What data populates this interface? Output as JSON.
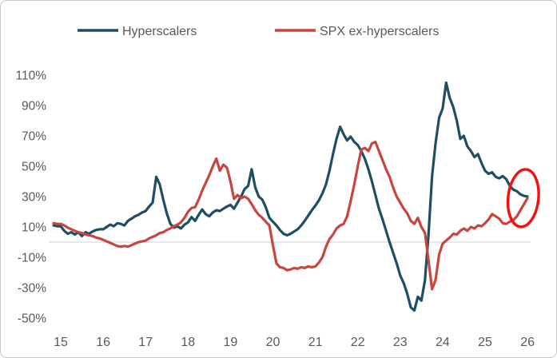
{
  "chart_data": {
    "type": "line",
    "title": "",
    "xlabel": "",
    "ylabel": "",
    "x_start": 14.8333,
    "x_step": 0.083333,
    "xlim": [
      14.75,
      26.1
    ],
    "ylim": [
      -50,
      110
    ],
    "grid": "zero-line-only",
    "legend_position": "top",
    "axis_text_color": "#595959",
    "x_ticks": [
      {
        "value": 15,
        "label": "15"
      },
      {
        "value": 16,
        "label": "16"
      },
      {
        "value": 17,
        "label": "17"
      },
      {
        "value": 18,
        "label": "18"
      },
      {
        "value": 19,
        "label": "19"
      },
      {
        "value": 20,
        "label": "20"
      },
      {
        "value": 21,
        "label": "21"
      },
      {
        "value": 22,
        "label": "22"
      },
      {
        "value": 23,
        "label": "23"
      },
      {
        "value": 24,
        "label": "24"
      },
      {
        "value": 25,
        "label": "25"
      },
      {
        "value": 26,
        "label": "26"
      }
    ],
    "y_ticks": [
      {
        "value": 110,
        "label": "110%"
      },
      {
        "value": 90,
        "label": "90%"
      },
      {
        "value": 70,
        "label": "70%"
      },
      {
        "value": 50,
        "label": "50%"
      },
      {
        "value": 30,
        "label": "30%"
      },
      {
        "value": 10,
        "label": "10%"
      },
      {
        "value": -10,
        "label": "-10%"
      },
      {
        "value": -30,
        "label": "-30%"
      },
      {
        "value": -50,
        "label": "-50%"
      }
    ],
    "series": [
      {
        "name": "Hyperscalers",
        "color": "#1f4e63",
        "values": [
          11,
          10.5,
          10.5,
          7.5,
          5.5,
          6.5,
          5,
          6.5,
          4,
          6.5,
          5.5,
          7,
          8,
          8.5,
          8.5,
          10,
          11.5,
          10.5,
          12.5,
          12,
          11,
          14,
          15.5,
          17,
          18,
          19.5,
          20.5,
          23.5,
          26,
          43,
          38,
          28,
          19,
          12,
          9.5,
          10.5,
          9,
          11.5,
          13,
          16.5,
          14,
          18,
          21.5,
          18.5,
          17,
          19.5,
          21,
          20.5,
          22,
          23.5,
          24.5,
          22,
          26,
          30,
          35,
          37,
          48,
          36,
          30,
          28,
          23,
          16,
          13.5,
          11,
          8,
          5.5,
          4.5,
          5.5,
          7,
          8.5,
          11,
          14,
          17.5,
          21,
          24,
          27.5,
          32,
          38,
          47,
          58,
          68,
          76,
          71,
          67,
          69.5,
          66,
          64,
          60,
          55,
          48,
          40,
          31,
          22,
          15,
          7.5,
          0,
          -7,
          -14,
          -22,
          -27,
          -34,
          -43,
          -45,
          -36,
          -38.5,
          -25,
          5,
          43,
          65,
          82,
          88,
          105,
          95,
          89,
          80,
          68,
          70,
          63,
          60,
          56,
          58,
          52,
          47,
          45,
          46,
          43,
          42,
          43.5,
          41.5,
          37,
          34.5,
          33.5,
          31.5,
          30.5,
          30
        ]
      },
      {
        "name": "SPX ex-hyperscalers",
        "color": "#c7463e",
        "values": [
          12.5,
          12,
          12,
          11,
          9.5,
          8.5,
          7.5,
          6.5,
          6,
          5,
          4.5,
          4,
          3,
          2.5,
          1.5,
          0.5,
          -0.5,
          -1.5,
          -2.5,
          -3,
          -2.5,
          -3,
          -2,
          -1,
          0,
          0.5,
          1,
          2.5,
          3.5,
          4.5,
          6,
          6.5,
          8,
          9,
          10.5,
          11.5,
          13,
          16,
          20,
          22.5,
          23,
          28,
          34,
          39,
          44,
          50,
          55,
          47,
          51,
          49,
          40,
          28.5,
          31,
          29,
          30,
          28.5,
          25,
          21,
          18,
          16,
          13.5,
          11,
          -2,
          -14,
          -16.5,
          -17,
          -18.5,
          -18,
          -17,
          -17.5,
          -16.5,
          -17,
          -16,
          -16.5,
          -16,
          -13.5,
          -10,
          -3,
          2,
          5,
          9,
          11,
          12,
          17,
          27,
          38,
          50,
          61,
          62,
          60,
          65,
          66,
          60,
          54,
          48,
          43,
          36,
          30,
          26,
          22,
          19,
          14,
          12,
          16,
          10,
          6,
          -12,
          -31,
          -25,
          -8,
          -1,
          1,
          3,
          5.5,
          5,
          7.5,
          9,
          7.5,
          10,
          9,
          11,
          10.5,
          12.5,
          15,
          18.5,
          17,
          15.5,
          12.5,
          12,
          13.5,
          14.5,
          17,
          21,
          25,
          29
        ]
      }
    ],
    "annotation": {
      "type": "ellipse",
      "color": "#f50f0f",
      "x": 25.9,
      "y": 29,
      "rx": 19,
      "ry": 36,
      "tilt_deg": 6,
      "note": "circles the convergence of both lines near 30% at year 26"
    }
  }
}
